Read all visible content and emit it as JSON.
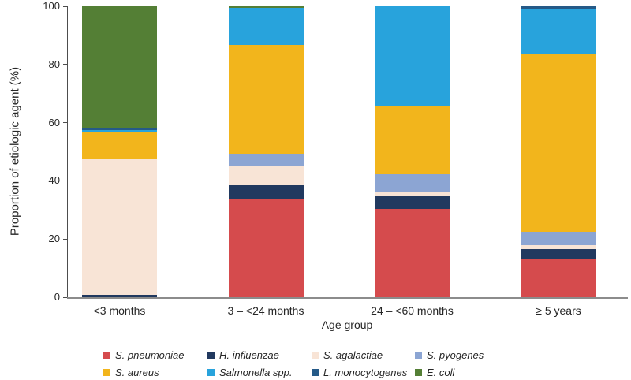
{
  "chart_data": {
    "type": "bar",
    "variant": "stacked-vertical",
    "title": "",
    "xlabel": "Age group",
    "ylabel": "Proportion of etiologic agent (%)",
    "ylim": [
      0,
      100
    ],
    "yticks": [
      0,
      20,
      40,
      60,
      80,
      100
    ],
    "grid": false,
    "legend_position": "bottom",
    "legend_rows": 2,
    "categories": [
      "<3 months",
      "3 – <24 months",
      "24 – <60 months",
      "≥ 5 years"
    ],
    "series": [
      {
        "name": "S. pneumoniae",
        "color": "#d54b4d",
        "values": [
          0,
          34,
          30.3,
          13.4
        ]
      },
      {
        "name": "H. influenzae",
        "color": "#21395f",
        "values": [
          0.8,
          4.4,
          4.7,
          3.2
        ]
      },
      {
        "name": "S. agalactiae",
        "color": "#f8e4d6",
        "values": [
          46.6,
          6.6,
          1.4,
          1.3
        ]
      },
      {
        "name": "S. pyogenes",
        "color": "#8ca5d3",
        "values": [
          0,
          4.3,
          5.9,
          4.5
        ]
      },
      {
        "name": "S. aureus",
        "color": "#f2b51c",
        "values": [
          9.2,
          37.4,
          23.3,
          61.3
        ]
      },
      {
        "name": "Salmonella spp.",
        "color": "#28a3dc",
        "values": [
          0.8,
          12.8,
          34.4,
          15.2
        ]
      },
      {
        "name": "L. monocytogenes",
        "color": "#255a88",
        "values": [
          0.9,
          0,
          0,
          1.1
        ]
      },
      {
        "name": "E. coli",
        "color": "#547f35",
        "values": [
          41.7,
          0.5,
          0,
          0
        ]
      }
    ]
  }
}
